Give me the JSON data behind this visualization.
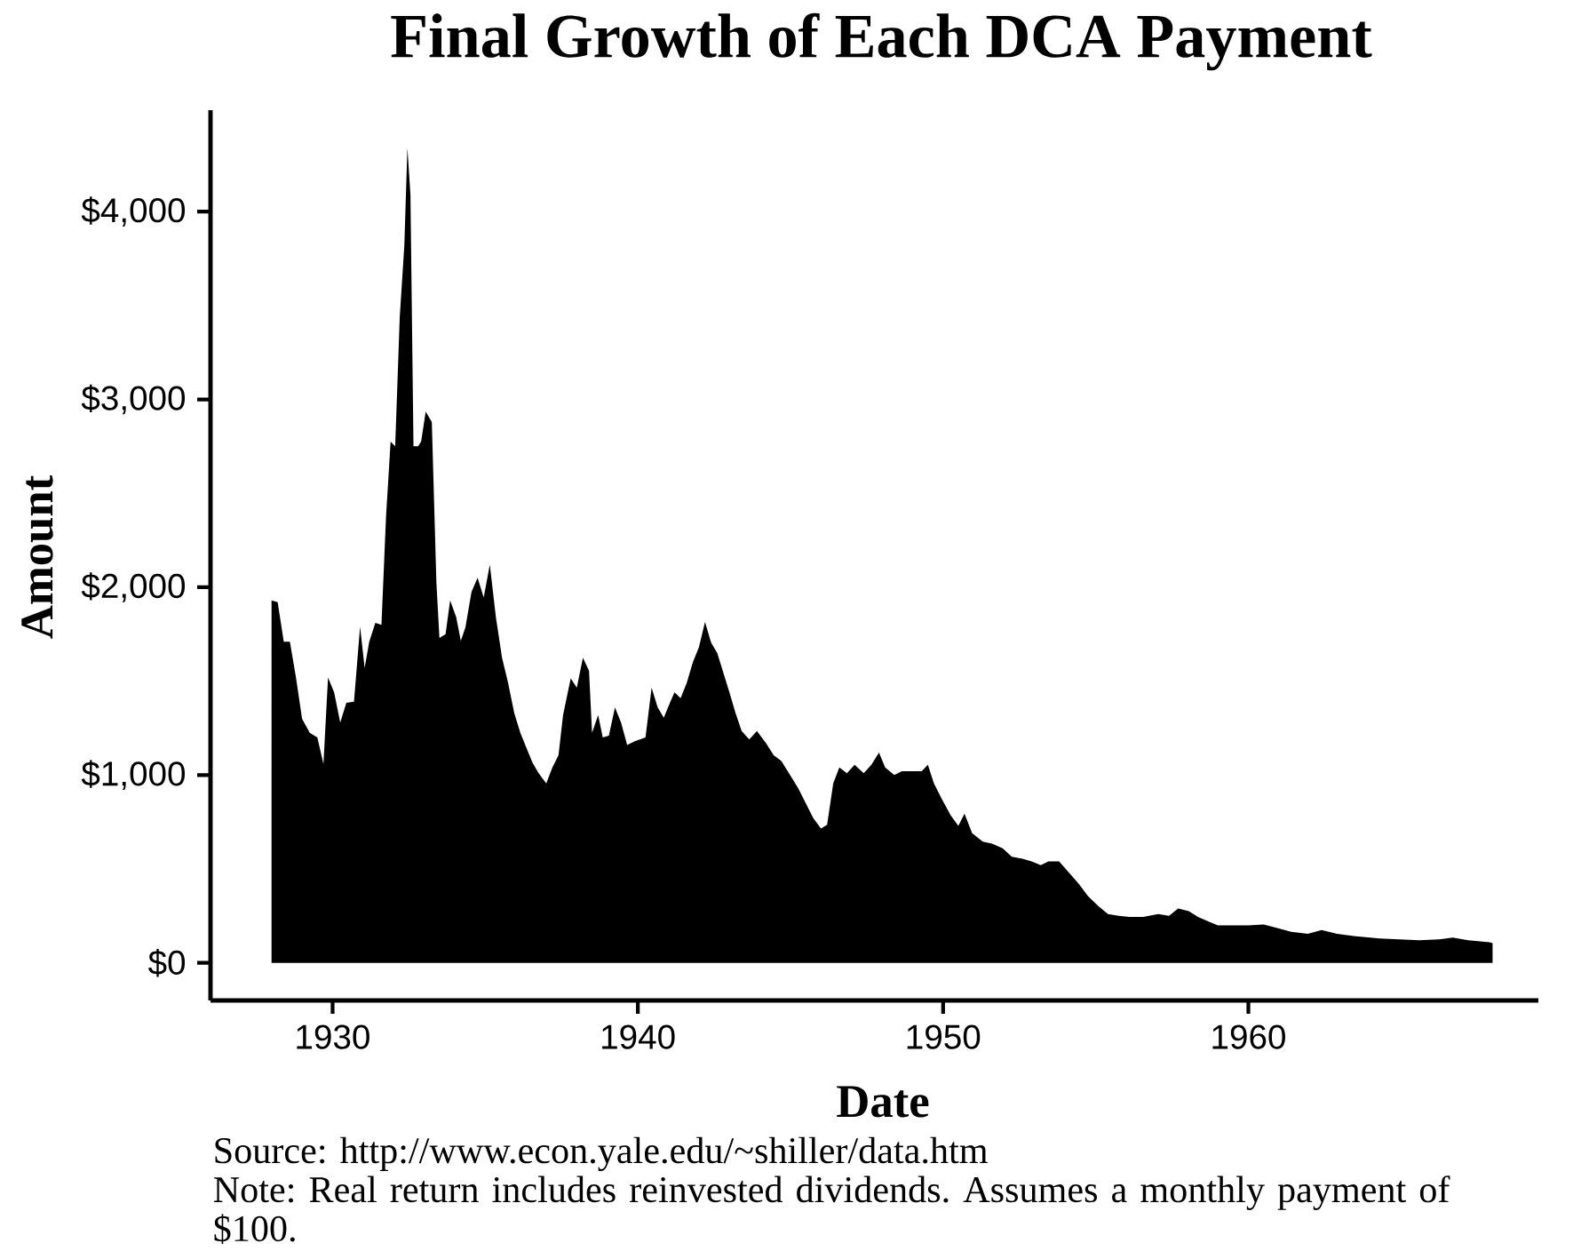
{
  "chart_data": {
    "type": "area",
    "title": "Final Growth of Each DCA Payment",
    "xlabel": "Date",
    "ylabel": "Amount",
    "annotations": [
      "Source:  http://www.econ.yale.edu/~shiller/data.htm",
      "Note: Real return includes reinvested dividends. Assumes a monthly payment of $100."
    ],
    "xlim": [
      1926,
      1969.5
    ],
    "xticks": [
      1930,
      1940,
      1950,
      1960
    ],
    "ylim": [
      -200,
      4540
    ],
    "yticks": [
      {
        "value": 0,
        "label": "$0"
      },
      {
        "value": 1000,
        "label": "$1,000"
      },
      {
        "value": 2000,
        "label": "$2,000"
      },
      {
        "value": 3000,
        "label": "$3,000"
      },
      {
        "value": 4000,
        "label": "$4,000"
      }
    ],
    "color": "#000000",
    "x": [
      1928.0,
      1928.2,
      1928.4,
      1928.6,
      1928.8,
      1929.0,
      1929.25,
      1929.5,
      1929.7,
      1929.85,
      1930.05,
      1930.25,
      1930.45,
      1930.7,
      1930.9,
      1931.05,
      1931.2,
      1931.4,
      1931.6,
      1931.75,
      1931.9,
      1932.05,
      1932.2,
      1932.35,
      1932.45,
      1932.55,
      1932.65,
      1932.8,
      1932.9,
      1933.05,
      1933.25,
      1933.4,
      1933.5,
      1933.7,
      1933.85,
      1934.05,
      1934.2,
      1934.35,
      1934.55,
      1934.75,
      1934.95,
      1935.15,
      1935.35,
      1935.55,
      1935.75,
      1935.95,
      1936.15,
      1936.35,
      1936.55,
      1936.75,
      1937.0,
      1937.2,
      1937.4,
      1937.55,
      1937.8,
      1938.0,
      1938.2,
      1938.4,
      1938.5,
      1938.7,
      1938.85,
      1939.05,
      1939.25,
      1939.45,
      1939.65,
      1939.9,
      1940.25,
      1940.45,
      1940.65,
      1940.85,
      1941.05,
      1941.2,
      1941.4,
      1941.6,
      1941.8,
      1942.0,
      1942.2,
      1942.4,
      1942.6,
      1942.8,
      1943.0,
      1943.2,
      1943.4,
      1943.65,
      1943.9,
      1944.2,
      1944.45,
      1944.7,
      1944.95,
      1945.25,
      1945.5,
      1945.75,
      1946.0,
      1946.2,
      1946.4,
      1946.6,
      1946.85,
      1947.1,
      1947.4,
      1947.65,
      1947.9,
      1948.1,
      1948.4,
      1948.65,
      1948.95,
      1949.3,
      1949.5,
      1949.7,
      1949.95,
      1950.25,
      1950.5,
      1950.7,
      1950.95,
      1951.3,
      1951.6,
      1951.95,
      1952.25,
      1952.6,
      1952.9,
      1953.2,
      1953.45,
      1953.8,
      1954.1,
      1954.45,
      1954.75,
      1955.1,
      1955.4,
      1955.75,
      1956.1,
      1956.55,
      1957.05,
      1957.4,
      1957.7,
      1958.05,
      1958.35,
      1958.7,
      1959.0,
      1959.45,
      1960.0,
      1960.5,
      1960.95,
      1961.4,
      1961.95,
      1962.4,
      1962.9,
      1963.6,
      1964.3,
      1964.95,
      1965.6,
      1966.25,
      1966.7,
      1967.2,
      1967.9,
      1968.0
    ],
    "values": [
      1930,
      1920,
      1710,
      1710,
      1520,
      1300,
      1225,
      1200,
      1060,
      1520,
      1440,
      1280,
      1385,
      1390,
      1790,
      1570,
      1710,
      1810,
      1800,
      2375,
      2775,
      2750,
      3440,
      3820,
      4340,
      4090,
      2750,
      2750,
      2775,
      2935,
      2880,
      2025,
      1730,
      1750,
      1930,
      1840,
      1715,
      1785,
      1975,
      2050,
      1945,
      2120,
      1840,
      1625,
      1490,
      1330,
      1225,
      1145,
      1065,
      1010,
      955,
      1040,
      1105,
      1320,
      1515,
      1465,
      1625,
      1555,
      1225,
      1320,
      1200,
      1210,
      1360,
      1280,
      1160,
      1180,
      1200,
      1465,
      1360,
      1305,
      1385,
      1440,
      1410,
      1490,
      1600,
      1680,
      1815,
      1705,
      1650,
      1545,
      1440,
      1330,
      1235,
      1190,
      1235,
      1170,
      1105,
      1075,
      1010,
      930,
      850,
      770,
      715,
      735,
      955,
      1040,
      1010,
      1055,
      1010,
      1055,
      1120,
      1040,
      1000,
      1020,
      1020,
      1020,
      1055,
      955,
      875,
      785,
      730,
      795,
      690,
      645,
      635,
      610,
      565,
      555,
      540,
      520,
      540,
      540,
      485,
      420,
      355,
      300,
      260,
      250,
      245,
      245,
      260,
      250,
      290,
      275,
      245,
      220,
      200,
      200,
      200,
      205,
      185,
      165,
      155,
      175,
      155,
      140,
      130,
      125,
      120,
      125,
      135,
      120,
      110,
      105
    ]
  }
}
